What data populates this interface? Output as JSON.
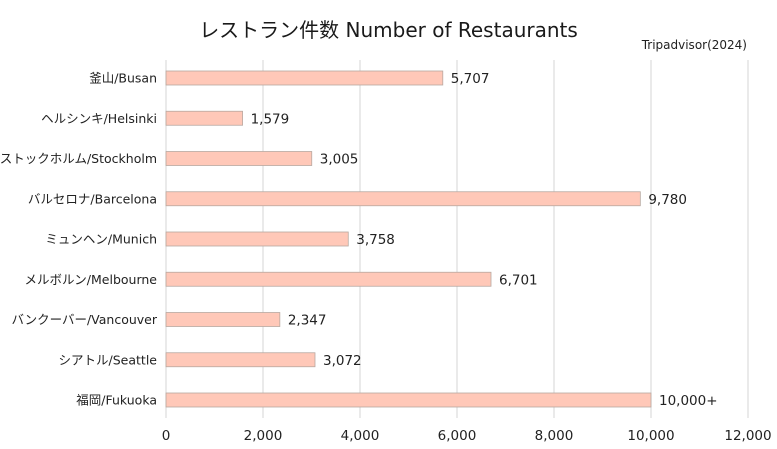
{
  "chart_data": {
    "type": "bar",
    "orientation": "horizontal",
    "title": "レストラン件数 Number of Restaurants",
    "source": "Tripadvisor(2024)",
    "categories": [
      "釜山/Busan",
      "ヘルシンキ/Helsinki",
      "ストックホルム/Stockholm",
      "バルセロナ/Barcelona",
      "ミュンヘン/Munich",
      "メルボルン/Melbourne",
      "バンクーバー/Vancouver",
      "シアトル/Seattle",
      "福岡/Fukuoka"
    ],
    "values": [
      5707,
      1579,
      3005,
      9780,
      3758,
      6701,
      2347,
      3072,
      10000
    ],
    "value_labels": [
      "5,707",
      "1,579",
      "3,005",
      "9,780",
      "3,758",
      "6,701",
      "2,347",
      "3,072",
      "10,000+"
    ],
    "xlim": [
      0,
      12000
    ],
    "xticks": [
      0,
      2000,
      4000,
      6000,
      8000,
      10000,
      12000
    ],
    "xtick_labels": [
      "0",
      "2,000",
      "4,000",
      "6,000",
      "8,000",
      "10,000",
      "12,000"
    ],
    "grid": "vertical",
    "legend": "none",
    "colors": {
      "bar_fill": "#ffc8b8",
      "bar_stroke": "#b8a8a0",
      "grid": "#d4d4d4"
    }
  }
}
